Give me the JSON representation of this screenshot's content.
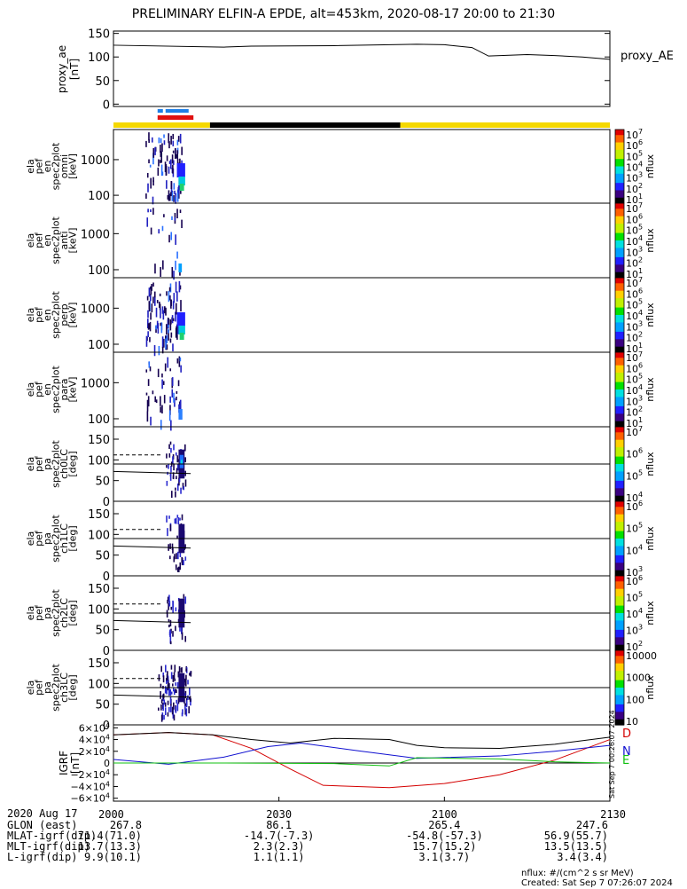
{
  "title": "PRELIMINARY ELFIN-A EPDE, alt=453km, 2020-08-17 20:00 to 21:30",
  "legend_label": "proxy_AE",
  "colorbar_unit": "nflux",
  "chart_data": [
    {
      "type": "line",
      "name": "proxy_ae",
      "ylabel": [
        "proxy_ae",
        "[nT]"
      ],
      "ylim": [
        -5,
        155
      ],
      "yticks": [
        "150",
        "100",
        "50",
        "0"
      ],
      "ytick_values": [
        150,
        100,
        50,
        0
      ],
      "x_minutes": [
        0,
        20,
        25,
        40,
        55,
        60,
        65,
        68,
        75,
        80,
        85,
        90
      ],
      "values": [
        125,
        121,
        123,
        124,
        127,
        126,
        120,
        102,
        105,
        103,
        100,
        95
      ]
    },
    {
      "type": "heatmap",
      "name": "spec2plot_omni",
      "ylabel": [
        "ela",
        "pef",
        "en",
        "spec2plot",
        "omni",
        "[keV]"
      ],
      "yscale": "log",
      "ylim": [
        60,
        7000
      ],
      "yticks": [
        "1000",
        "100"
      ],
      "ytick_values": [
        1000,
        100
      ],
      "colorbar_ticks": [
        "10^7",
        "10^6",
        "10^5",
        "10^4",
        "10^3",
        "10^2",
        "10^1"
      ],
      "colorbar_label": "nflux"
    },
    {
      "type": "heatmap",
      "name": "spec2plot_anti",
      "ylabel": [
        "ela",
        "pef",
        "en",
        "spec2plot",
        "anti",
        "[keV]"
      ],
      "yscale": "log",
      "ylim": [
        60,
        7000
      ],
      "yticks": [
        "1000",
        "100"
      ],
      "ytick_values": [
        1000,
        100
      ],
      "colorbar_ticks": [
        "10^7",
        "10^6",
        "10^5",
        "10^4",
        "10^3",
        "10^2",
        "10^1"
      ],
      "colorbar_label": "nflux"
    },
    {
      "type": "heatmap",
      "name": "spec2plot_perp",
      "ylabel": [
        "ela",
        "pef",
        "en",
        "spec2plot",
        "perp",
        "[keV]"
      ],
      "yscale": "log",
      "ylim": [
        60,
        7000
      ],
      "yticks": [
        "1000",
        "100"
      ],
      "ytick_values": [
        1000,
        100
      ],
      "colorbar_ticks": [
        "10^7",
        "10^6",
        "10^5",
        "10^4",
        "10^3",
        "10^2",
        "10^1"
      ],
      "colorbar_label": "nflux"
    },
    {
      "type": "heatmap",
      "name": "spec2plot_para",
      "ylabel": [
        "ela",
        "pef",
        "en",
        "spec2plot",
        "para",
        "[keV]"
      ],
      "yscale": "log",
      "ylim": [
        60,
        7000
      ],
      "yticks": [
        "1000",
        "100"
      ],
      "ytick_values": [
        1000,
        100
      ],
      "colorbar_ticks": [
        "10^7",
        "10^6",
        "10^5",
        "10^4",
        "10^3",
        "10^2",
        "10^1"
      ],
      "colorbar_label": "nflux"
    },
    {
      "type": "heatmap",
      "name": "spec2plot_ch0LC",
      "ylabel": [
        "ela",
        "pef",
        "pa",
        "spec2plot",
        "ch0LC",
        "[deg]"
      ],
      "ylim": [
        0,
        180
      ],
      "yticks": [
        "150",
        "100",
        "50",
        "0"
      ],
      "ytick_values": [
        150,
        100,
        50,
        0
      ],
      "colorbar_ticks": [
        "10^7",
        "10^6",
        "10^5",
        "10^4"
      ],
      "colorbar_label": "nflux"
    },
    {
      "type": "heatmap",
      "name": "spec2plot_ch1LC",
      "ylabel": [
        "ela",
        "pef",
        "pa",
        "spec2plot",
        "ch1LC",
        "[deg]"
      ],
      "ylim": [
        0,
        180
      ],
      "yticks": [
        "150",
        "100",
        "50",
        "0"
      ],
      "ytick_values": [
        150,
        100,
        50,
        0
      ],
      "colorbar_ticks": [
        "10^6",
        "10^5",
        "10^4",
        "10^3"
      ],
      "colorbar_label": "nflux"
    },
    {
      "type": "heatmap",
      "name": "spec2plot_ch2LC",
      "ylabel": [
        "ela",
        "pef",
        "pa",
        "spec2plot",
        "ch2LC",
        "[deg]"
      ],
      "ylim": [
        0,
        180
      ],
      "yticks": [
        "150",
        "100",
        "50",
        "0"
      ],
      "ytick_values": [
        150,
        100,
        50,
        0
      ],
      "colorbar_ticks": [
        "10^6",
        "10^5",
        "10^4",
        "10^3",
        "10^2"
      ],
      "colorbar_label": "nflux"
    },
    {
      "type": "heatmap",
      "name": "spec2plot_ch3LC",
      "ylabel": [
        "ela",
        "pef",
        "pa",
        "spec2plot",
        "ch3LC",
        "[deg]"
      ],
      "ylim": [
        0,
        180
      ],
      "yticks": [
        "150",
        "100",
        "50",
        "0"
      ],
      "ytick_values": [
        150,
        100,
        50,
        0
      ],
      "colorbar_ticks": [
        "10000",
        "1000",
        "100",
        "10"
      ],
      "colorbar_label": "nflux"
    },
    {
      "type": "line",
      "name": "IGRF",
      "ylabel": [
        "IGRF",
        "[nT]"
      ],
      "ylim": [
        -65000,
        65000
      ],
      "yticks": [
        "6×10^4",
        "4×10^4",
        "2×10^4",
        "0",
        "−2×10^4",
        "−4×10^4",
        "−6×10^4"
      ],
      "ytick_values": [
        60000,
        40000,
        20000,
        0,
        -20000,
        -40000,
        -60000
      ],
      "series": [
        {
          "name": "D",
          "color": "#d40000",
          "x": [
            0,
            10,
            18,
            25,
            32,
            38,
            50,
            60,
            70,
            80,
            90
          ],
          "values": [
            48000,
            52000,
            48000,
            25000,
            -10000,
            -38000,
            -42000,
            -35000,
            -20000,
            5000,
            40000
          ]
        },
        {
          "name": "N",
          "color": "#1010d0",
          "x": [
            0,
            10,
            20,
            28,
            34,
            45,
            55,
            70,
            80,
            90
          ],
          "values": [
            6000,
            -2000,
            10000,
            28000,
            34000,
            20000,
            8000,
            12000,
            20000,
            30000
          ]
        },
        {
          "name": "E",
          "color": "#10c010",
          "x": [
            0,
            20,
            40,
            50,
            55,
            70,
            80,
            90
          ],
          "values": [
            0,
            0,
            -1000,
            -5000,
            9000,
            7000,
            2000,
            0
          ]
        },
        {
          "name": "",
          "color": "#000000",
          "x": [
            0,
            10,
            18,
            25,
            32,
            40,
            50,
            55,
            60,
            70,
            80,
            90
          ],
          "values": [
            48000,
            52000,
            48000,
            40000,
            34000,
            42000,
            40000,
            30000,
            26000,
            25000,
            32000,
            44000
          ]
        }
      ]
    }
  ],
  "xaxis": {
    "date": "2020 Aug 17",
    "ticks": [
      "2000",
      "2030",
      "2100",
      "2130"
    ],
    "tick_minutes": [
      0,
      30,
      60,
      90
    ]
  },
  "ephemeris": [
    {
      "label": "GLON (east)",
      "values": [
        "267.8",
        "86.1",
        "265.4",
        "247.6"
      ]
    },
    {
      "label": "MLAT-igrf(dip)",
      "values": [
        "71.4(71.0)",
        "-14.7(-7.3)",
        "-54.8(-57.3)",
        "56.9(55.7)"
      ]
    },
    {
      "label": "MLT-igrf(dip)",
      "values": [
        "13.7(13.3)",
        "2.3(2.3)",
        "15.7(15.2)",
        "13.5(13.5)"
      ]
    },
    {
      "label": "L-igrf(dip)",
      "values": [
        "9.9(10.1)",
        "1.1(1.1)",
        "3.1(3.7)",
        "3.4(3.4)"
      ]
    }
  ],
  "footer": {
    "unit_note": "nflux: #/(cm^2 s sr MeV)",
    "created": "Created: Sat Sep  7 07:26:07 2024",
    "side_stamp": "Sat Sep  7 00:26:07 2024"
  },
  "colors": {
    "status_yellow": "#f5d800",
    "status_black": "#000000",
    "marker_blue": "#1e7fe6",
    "marker_red": "#e01010"
  }
}
